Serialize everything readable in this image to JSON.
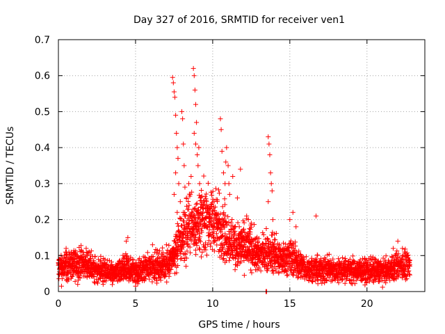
{
  "chart_data": {
    "type": "scatter",
    "title": "Day 327 of 2016, SRMTID for receiver ven1",
    "xlabel": "GPS time / hours",
    "ylabel": "SRMTID / TECUs",
    "xlim": [
      0,
      23.75
    ],
    "ylim": [
      0,
      0.7
    ],
    "xticks": [
      0,
      5,
      10,
      15,
      20
    ],
    "yticks": [
      0,
      0.1,
      0.2,
      0.3,
      0.4,
      0.5,
      0.6,
      0.7
    ],
    "xtick_labels": [
      "0",
      "5",
      "10",
      "15",
      "20"
    ],
    "ytick_labels": [
      "0",
      "0.1",
      "0.2",
      "0.3",
      "0.4",
      "0.5",
      "0.6",
      "0.7"
    ],
    "grid": true,
    "marker": "+",
    "color": "#ff0000",
    "series": [
      {
        "name": "SRMTID",
        "trend": [
          [
            0.0,
            0.065
          ],
          [
            0.5,
            0.07
          ],
          [
            1.0,
            0.075
          ],
          [
            1.5,
            0.078
          ],
          [
            2.0,
            0.072
          ],
          [
            2.5,
            0.06
          ],
          [
            3.0,
            0.055
          ],
          [
            3.5,
            0.052
          ],
          [
            4.0,
            0.055
          ],
          [
            4.5,
            0.065
          ],
          [
            5.0,
            0.055
          ],
          [
            5.5,
            0.06
          ],
          [
            6.0,
            0.07
          ],
          [
            6.5,
            0.072
          ],
          [
            7.0,
            0.075
          ],
          [
            7.5,
            0.1
          ],
          [
            8.0,
            0.15
          ],
          [
            8.5,
            0.18
          ],
          [
            9.0,
            0.19
          ],
          [
            9.5,
            0.2
          ],
          [
            10.0,
            0.2
          ],
          [
            10.5,
            0.18
          ],
          [
            11.0,
            0.15
          ],
          [
            11.5,
            0.13
          ],
          [
            12.0,
            0.13
          ],
          [
            12.5,
            0.12
          ],
          [
            13.0,
            0.1
          ],
          [
            13.5,
            0.11
          ],
          [
            14.0,
            0.1
          ],
          [
            14.5,
            0.09
          ],
          [
            15.0,
            0.1
          ],
          [
            15.5,
            0.08
          ],
          [
            16.0,
            0.065
          ],
          [
            16.5,
            0.06
          ],
          [
            17.0,
            0.06
          ],
          [
            18.0,
            0.058
          ],
          [
            19.0,
            0.06
          ],
          [
            20.0,
            0.06
          ],
          [
            21.0,
            0.058
          ],
          [
            21.5,
            0.06
          ],
          [
            22.0,
            0.075
          ],
          [
            22.5,
            0.07
          ],
          [
            22.8,
            0.065
          ]
        ],
        "spikes": [
          [
            7.4,
            0.595
          ],
          [
            7.45,
            0.58
          ],
          [
            7.5,
            0.555
          ],
          [
            7.55,
            0.54
          ],
          [
            7.6,
            0.49
          ],
          [
            7.65,
            0.44
          ],
          [
            7.7,
            0.4
          ],
          [
            7.75,
            0.37
          ],
          [
            7.6,
            0.33
          ],
          [
            7.8,
            0.3
          ],
          [
            7.5,
            0.27
          ],
          [
            7.7,
            0.22
          ],
          [
            7.9,
            0.25
          ],
          [
            8.0,
            0.5
          ],
          [
            8.05,
            0.48
          ],
          [
            8.1,
            0.41
          ],
          [
            8.15,
            0.35
          ],
          [
            8.2,
            0.29
          ],
          [
            8.3,
            0.26
          ],
          [
            8.45,
            0.3
          ],
          [
            8.55,
            0.27
          ],
          [
            8.6,
            0.32
          ],
          [
            8.75,
            0.62
          ],
          [
            8.8,
            0.6
          ],
          [
            8.85,
            0.56
          ],
          [
            8.9,
            0.52
          ],
          [
            8.95,
            0.47
          ],
          [
            8.8,
            0.44
          ],
          [
            8.9,
            0.41
          ],
          [
            9.0,
            0.38
          ],
          [
            9.05,
            0.35
          ],
          [
            9.1,
            0.4
          ],
          [
            9.15,
            0.3
          ],
          [
            9.2,
            0.26
          ],
          [
            9.4,
            0.24
          ],
          [
            9.6,
            0.25
          ],
          [
            9.8,
            0.23
          ],
          [
            10.5,
            0.48
          ],
          [
            10.55,
            0.45
          ],
          [
            10.6,
            0.39
          ],
          [
            10.7,
            0.33
          ],
          [
            10.8,
            0.3
          ],
          [
            10.85,
            0.36
          ],
          [
            10.9,
            0.4
          ],
          [
            11.0,
            0.35
          ],
          [
            11.05,
            0.3
          ],
          [
            11.1,
            0.27
          ],
          [
            11.3,
            0.32
          ],
          [
            11.6,
            0.26
          ],
          [
            11.8,
            0.34
          ],
          [
            12.2,
            0.21
          ],
          [
            12.5,
            0.19
          ],
          [
            13.6,
            0.43
          ],
          [
            13.65,
            0.41
          ],
          [
            13.7,
            0.38
          ],
          [
            13.75,
            0.33
          ],
          [
            13.8,
            0.3
          ],
          [
            13.85,
            0.28
          ],
          [
            13.6,
            0.25
          ],
          [
            13.9,
            0.2
          ],
          [
            14.0,
            0.16
          ],
          [
            15.0,
            0.2
          ],
          [
            15.2,
            0.22
          ],
          [
            15.4,
            0.18
          ],
          [
            16.7,
            0.21
          ],
          [
            4.4,
            0.14
          ],
          [
            4.5,
            0.15
          ],
          [
            0.5,
            0.12
          ],
          [
            1.8,
            0.12
          ],
          [
            6.1,
            0.13
          ],
          [
            7.0,
            0.13
          ],
          [
            21.7,
            0.12
          ],
          [
            22.0,
            0.14
          ],
          [
            22.3,
            0.12
          ],
          [
            0.2,
            0.015
          ],
          [
            2.9,
            0.02
          ],
          [
            5.0,
            0.015
          ],
          [
            13.45,
            0.0
          ],
          [
            13.5,
            0.0
          ]
        ]
      }
    ]
  }
}
